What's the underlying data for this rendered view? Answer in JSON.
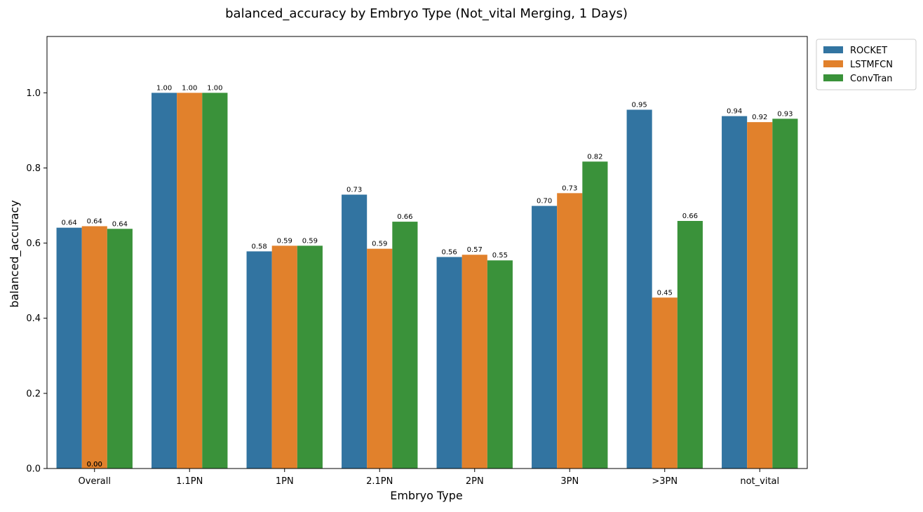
{
  "chart_data": {
    "type": "bar",
    "title": "balanced_accuracy by Embryo Type (Not_vital Merging, 1 Days)",
    "xlabel": "Embryo Type",
    "ylabel": "balanced_accuracy",
    "ylim": [
      0,
      1.15
    ],
    "yticks": [
      "0.0",
      "0.2",
      "0.4",
      "0.6",
      "0.8",
      "1.0"
    ],
    "grid": false,
    "legend_position": "outside top-right",
    "categories": [
      "Overall",
      "1.1PN",
      "1PN",
      "2.1PN",
      "2PN",
      "3PN",
      ">3PN",
      "not_vital"
    ],
    "series": [
      {
        "name": "ROCKET",
        "color": "#3274a1",
        "values": [
          0.641,
          1.0,
          0.578,
          0.729,
          0.563,
          0.699,
          0.955,
          0.938
        ],
        "labels": [
          "0.64",
          "1.00",
          "0.58",
          "0.73",
          "0.56",
          "0.70",
          "0.95",
          "0.94"
        ]
      },
      {
        "name": "LSTMFCN",
        "color": "#e1812c",
        "values": [
          0.645,
          1.0,
          0.593,
          0.585,
          0.569,
          0.733,
          0.455,
          0.922
        ],
        "labels": [
          "0.64",
          "1.00",
          "0.59",
          "0.59",
          "0.57",
          "0.73",
          "0.45",
          "0.92"
        ]
      },
      {
        "name": "ConvTran",
        "color": "#3a923a",
        "values": [
          0.638,
          1.0,
          0.593,
          0.657,
          0.554,
          0.817,
          0.659,
          0.931
        ],
        "labels": [
          "0.64",
          "1.00",
          "0.59",
          "0.66",
          "0.55",
          "0.82",
          "0.66",
          "0.93"
        ]
      }
    ],
    "annotations": [
      {
        "text": "0.00",
        "category": "Overall",
        "series": "LSTMFCN"
      },
      {
        "text": "0.00",
        "category": "Overall",
        "series": "LSTMFCN"
      }
    ]
  }
}
